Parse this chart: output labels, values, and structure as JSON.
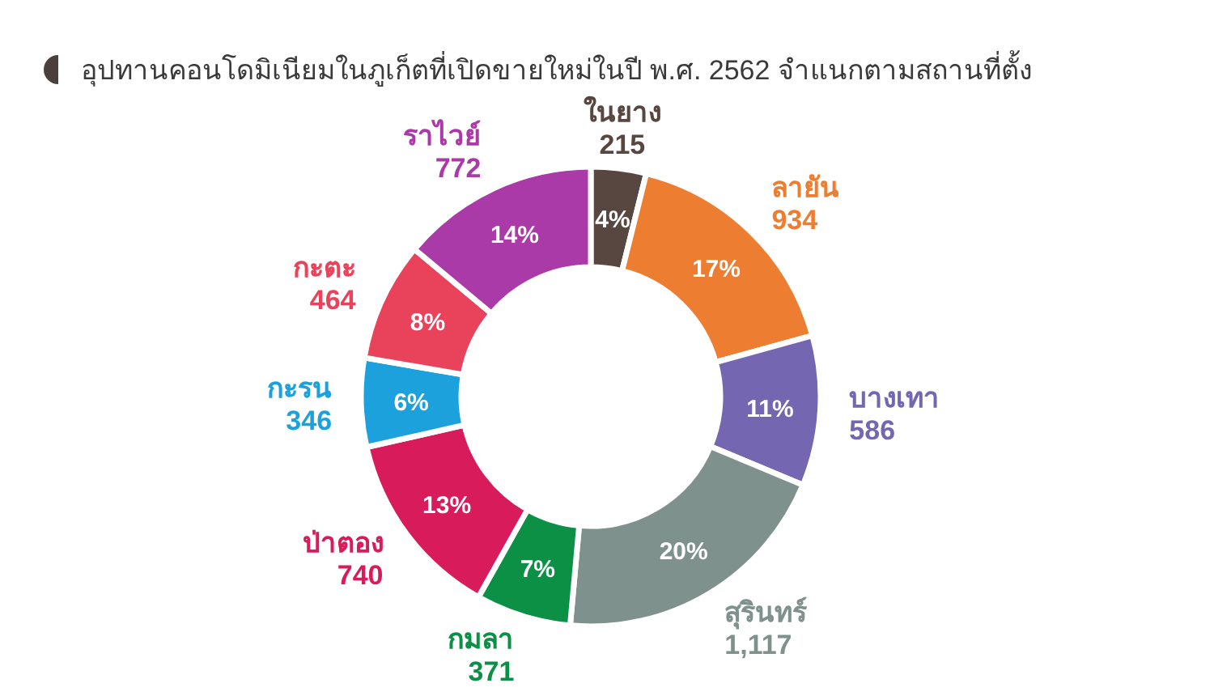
{
  "chart_data": {
    "type": "donut",
    "title": "อุปทานคอนโดมิเนียมในภูเก็ตที่เปิดขายใหม่ในปี พ.ศ. 2562 จำแนกตามสถานที่ตั้ง",
    "categories": [
      "ในยาง",
      "ลายัน",
      "บางเทา",
      "สุรินทร์",
      "กมลา",
      "ป่าตอง",
      "กะรน",
      "กะตะ",
      "ราไวย์"
    ],
    "values": [
      215,
      934,
      586,
      1117,
      371,
      740,
      346,
      464,
      772
    ],
    "colors": [
      "#574740",
      "#ed7d31",
      "#7466b0",
      "#7f918d",
      "#0c9046",
      "#d81b5a",
      "#1da1dc",
      "#e8435b",
      "#a93aa8"
    ],
    "value_labels": [
      "215",
      "934",
      "586",
      "1,117",
      "371",
      "740",
      "346",
      "464",
      "772"
    ],
    "annotations": [
      {
        "text": "4%",
        "x": "ในยาง"
      },
      {
        "text": "17%",
        "x": "ลายัน"
      },
      {
        "text": "11%",
        "x": "บางเทา"
      },
      {
        "text": "20%",
        "x": "สุรินทร์"
      },
      {
        "text": "7%",
        "x": "กมลา"
      },
      {
        "text": "13%",
        "x": "ป่าตอง"
      },
      {
        "text": "6%",
        "x": "กะรน"
      },
      {
        "text": "8%",
        "x": "กะตะ"
      },
      {
        "text": "14%",
        "x": "ราไวย์"
      }
    ]
  }
}
